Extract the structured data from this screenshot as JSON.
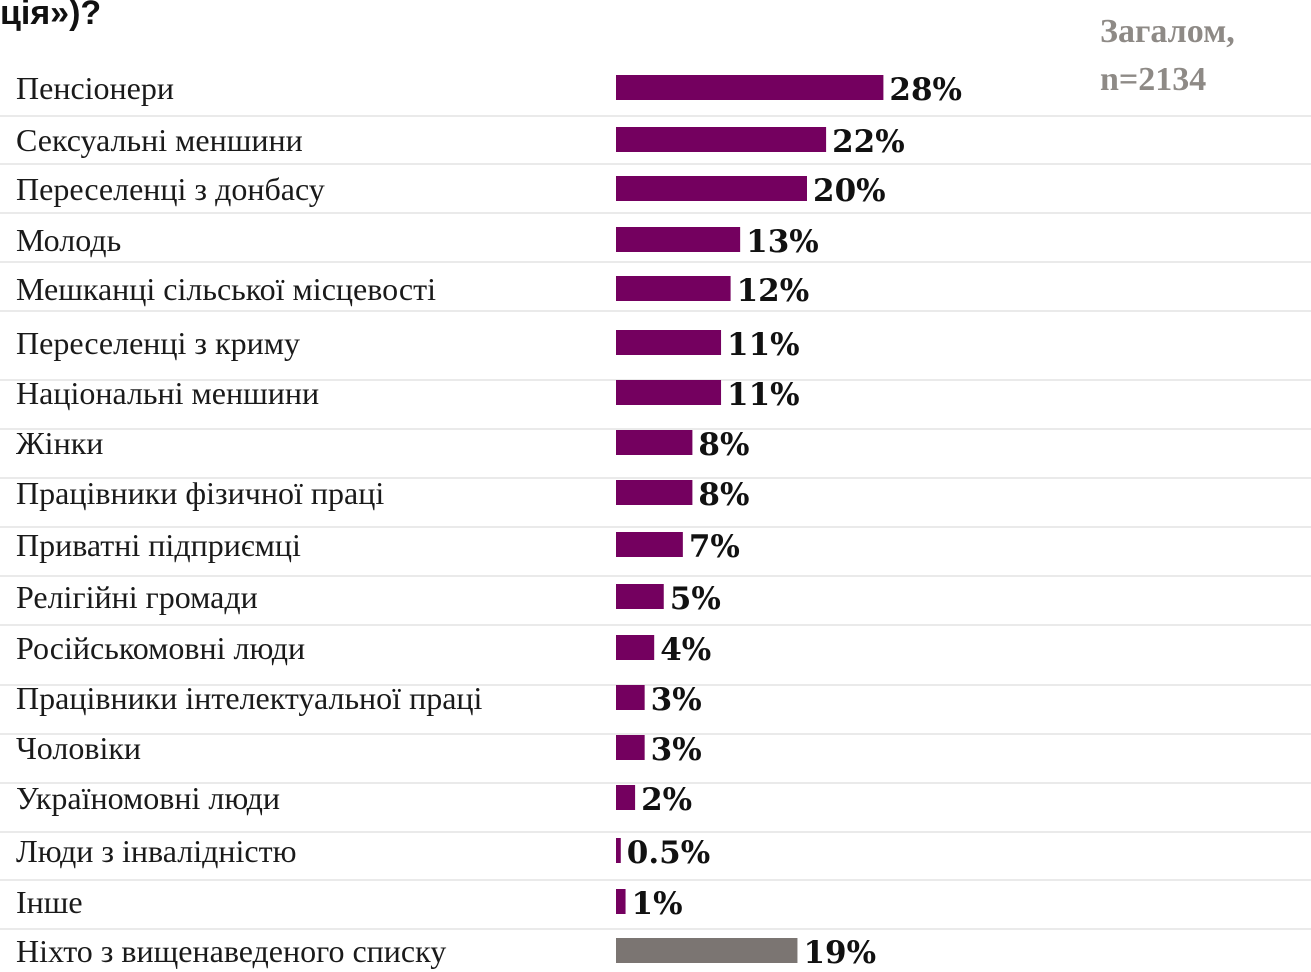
{
  "title_fragment": "ція»)?",
  "header": {
    "line1": "Загалом,",
    "line2": "n=2134"
  },
  "colors": {
    "bar": "#74005f",
    "bar_none": "#7b7572",
    "header_text": "#8e8a86"
  },
  "chart_data": {
    "type": "bar",
    "orientation": "horizontal",
    "value_suffix": "%",
    "categories": [
      "Пенсіонери",
      "Сексуальні меншини",
      "Переселенці з донбасу",
      "Молодь",
      "Мешканці сільської місцевості",
      "Переселенці з криму",
      "Національні меншини",
      "Жінки",
      "Працівники фізичної праці",
      "Приватні підприємці",
      "Релігійні громади",
      "Російськомовні люди",
      "Працівники інтелектуальної праці",
      "Чоловіки",
      "Україномовні люди",
      "Люди з інвалідністю",
      "Інше",
      "Ніхто з вищенаведеного списку"
    ],
    "values": [
      28,
      22,
      20,
      13,
      12,
      11,
      11,
      8,
      8,
      7,
      5,
      4,
      3,
      3,
      2,
      0.5,
      1,
      19
    ],
    "value_labels": [
      "28%",
      "22%",
      "20%",
      "13%",
      "12%",
      "11%",
      "11%",
      "8%",
      "8%",
      "7%",
      "5%",
      "4%",
      "3%",
      "3%",
      "2%",
      "0.5%",
      "1%",
      "19%"
    ],
    "highlight_last": true
  }
}
